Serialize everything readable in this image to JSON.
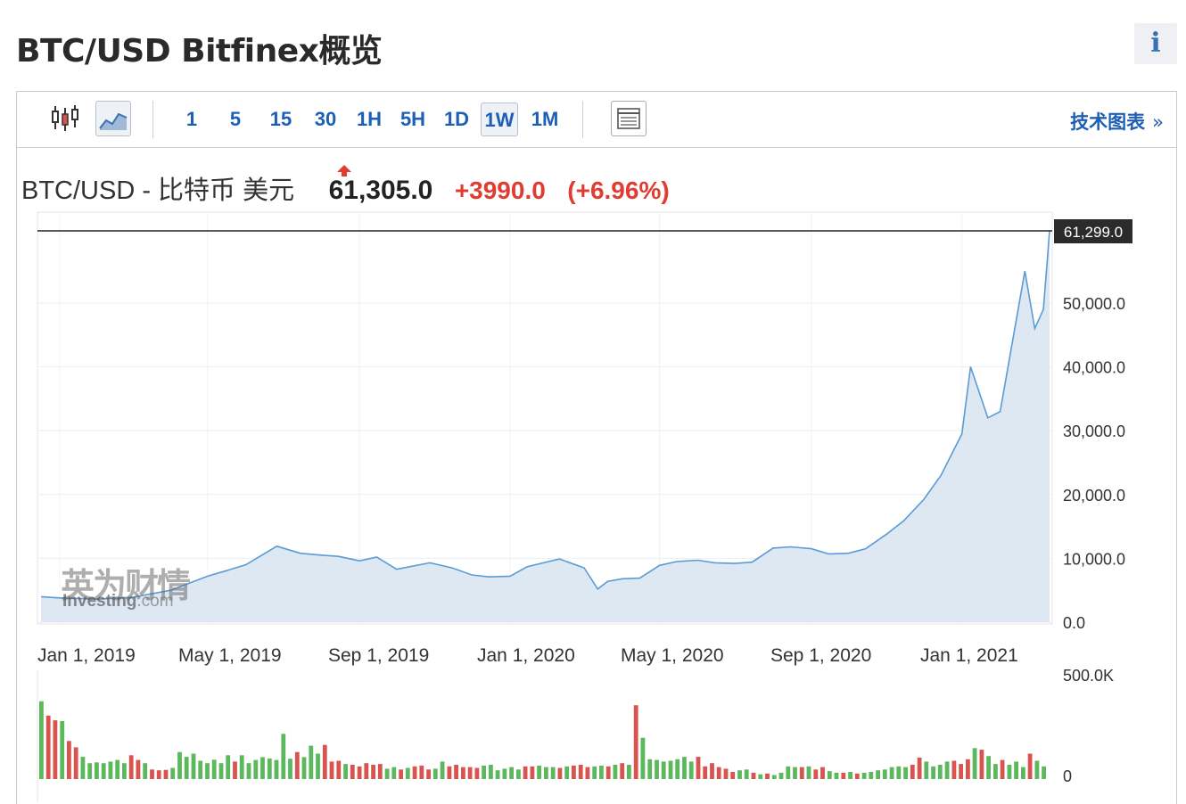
{
  "header": {
    "title": "BTC/USD Bitfinex概览",
    "info_label": "i"
  },
  "toolbar": {
    "intervals": [
      "1",
      "5",
      "15",
      "30",
      "1H",
      "5H",
      "1D",
      "1W",
      "1M"
    ],
    "active_interval": "1W",
    "tech_chart_label": "技术图表",
    "tech_chart_arrow": "»"
  },
  "quote": {
    "pair": "BTC/USD - 比特币 美元",
    "price": "61,305.0",
    "change": "+3990.0",
    "change_pct": "(+6.96%)",
    "direction": "up"
  },
  "colors": {
    "line": "#5b9bd5",
    "area": "#dde8f2",
    "up": "#5cb85c",
    "down": "#d9534f",
    "accent": "#1d5fb5"
  },
  "watermark": {
    "main": "英为财情",
    "sub_prefix": "Investing",
    "sub_suffix": ".com"
  },
  "chart_data": [
    {
      "type": "area",
      "title": "",
      "x_tick_labels": [
        "Jan 1, 2019",
        "May 1, 2019",
        "Sep 1, 2019",
        "Jan 1, 2020",
        "May 1, 2020",
        "Sep 1, 2020",
        "Jan 1, 2021"
      ],
      "y_tick_labels": [
        "0.0",
        "10,000.0",
        "20,000.0",
        "30,000.0",
        "40,000.0",
        "50,000.0"
      ],
      "ylim": [
        0,
        61299
      ],
      "last_value_label": "61,299.0",
      "x": [
        "2018-12-17",
        "2019-01-01",
        "2019-02-01",
        "2019-03-01",
        "2019-04-01",
        "2019-05-01",
        "2019-05-15",
        "2019-06-01",
        "2019-06-26",
        "2019-07-15",
        "2019-08-01",
        "2019-08-15",
        "2019-09-01",
        "2019-09-15",
        "2019-10-01",
        "2019-10-28",
        "2019-11-15",
        "2019-12-01",
        "2019-12-15",
        "2020-01-01",
        "2020-01-15",
        "2020-02-10",
        "2020-03-01",
        "2020-03-12",
        "2020-03-20",
        "2020-04-01",
        "2020-04-15",
        "2020-05-01",
        "2020-05-15",
        "2020-06-01",
        "2020-06-15",
        "2020-07-01",
        "2020-07-15",
        "2020-08-01",
        "2020-08-15",
        "2020-09-01",
        "2020-09-15",
        "2020-10-01",
        "2020-10-15",
        "2020-11-01",
        "2020-11-15",
        "2020-12-01",
        "2020-12-15",
        "2021-01-01",
        "2021-01-08",
        "2021-01-22",
        "2021-02-01",
        "2021-02-21",
        "2021-03-01",
        "2021-03-08",
        "2021-03-13"
      ],
      "y": [
        4000,
        3800,
        3600,
        3900,
        5000,
        7200,
        8000,
        9000,
        11900,
        10800,
        10500,
        10300,
        9600,
        10200,
        8300,
        9300,
        8500,
        7400,
        7100,
        7200,
        8700,
        9900,
        8500,
        5200,
        6400,
        6800,
        6900,
        8900,
        9500,
        9700,
        9300,
        9200,
        9400,
        11600,
        11800,
        11500,
        10700,
        10800,
        11500,
        13800,
        15900,
        19200,
        23000,
        29500,
        40000,
        32000,
        33000,
        55000,
        46000,
        49000,
        61299
      ]
    },
    {
      "type": "bar",
      "title": "",
      "y_tick_labels": [
        "0",
        "500.0K"
      ],
      "ylim": [
        0,
        500000
      ],
      "values": [
        490000,
        400000,
        370000,
        365000,
        240000,
        200000,
        140000,
        100000,
        105000,
        100000,
        110000,
        120000,
        100000,
        150000,
        120000,
        100000,
        60000,
        55000,
        58000,
        70000,
        170000,
        140000,
        160000,
        115000,
        100000,
        122000,
        100000,
        150000,
        110000,
        150000,
        100000,
        120000,
        138000,
        130000,
        120000,
        285000,
        128000,
        170000,
        138000,
        210000,
        160000,
        215000,
        110000,
        115000,
        95000,
        90000,
        80000,
        100000,
        90000,
        95000,
        65000,
        75000,
        60000,
        70000,
        80000,
        85000,
        60000,
        65000,
        110000,
        80000,
        90000,
        75000,
        75000,
        70000,
        85000,
        90000,
        55000,
        65000,
        75000,
        60000,
        80000,
        80000,
        85000,
        75000,
        75000,
        70000,
        80000,
        85000,
        90000,
        75000,
        80000,
        85000,
        80000,
        90000,
        100000,
        90000,
        465000,
        260000,
        125000,
        120000,
        110000,
        115000,
        125000,
        140000,
        110000,
        140000,
        80000,
        100000,
        75000,
        65000,
        45000,
        55000,
        60000,
        40000,
        30000,
        35000,
        25000,
        40000,
        80000,
        75000,
        75000,
        80000,
        60000,
        75000,
        50000,
        40000,
        40000,
        45000,
        35000,
        40000,
        45000,
        55000,
        60000,
        75000,
        80000,
        75000,
        90000,
        135000,
        110000,
        80000,
        90000,
        110000,
        115000,
        95000,
        125000,
        195000,
        185000,
        145000,
        95000,
        120000,
        90000,
        110000,
        75000,
        160000,
        115000,
        80000
      ],
      "up": [
        1,
        0,
        0,
        1,
        0,
        0,
        1,
        1,
        1,
        1,
        1,
        1,
        1,
        0,
        0,
        1,
        0,
        0,
        0,
        1,
        1,
        1,
        1,
        1,
        1,
        1,
        1,
        1,
        0,
        1,
        1,
        1,
        1,
        1,
        1,
        1,
        1,
        0,
        1,
        1,
        1,
        0,
        0,
        0,
        1,
        0,
        0,
        0,
        0,
        0,
        1,
        1,
        0,
        1,
        0,
        0,
        0,
        1,
        1,
        0,
        0,
        0,
        0,
        0,
        1,
        1,
        1,
        1,
        1,
        1,
        0,
        0,
        1,
        1,
        1,
        0,
        1,
        0,
        0,
        0,
        1,
        1,
        0,
        1,
        0,
        1,
        0,
        1,
        1,
        1,
        1,
        1,
        1,
        1,
        1,
        0,
        0,
        0,
        0,
        0,
        0,
        1,
        1,
        0,
        1,
        0,
        1,
        1,
        1,
        1,
        0,
        1,
        0,
        0,
        1,
        1,
        0,
        1,
        0,
        1,
        1,
        1,
        1,
        1,
        1,
        1,
        0,
        0,
        1,
        1,
        1,
        1,
        0,
        0,
        0,
        1,
        0,
        1,
        1,
        0,
        1,
        1,
        1,
        0,
        1,
        1
      ]
    }
  ]
}
